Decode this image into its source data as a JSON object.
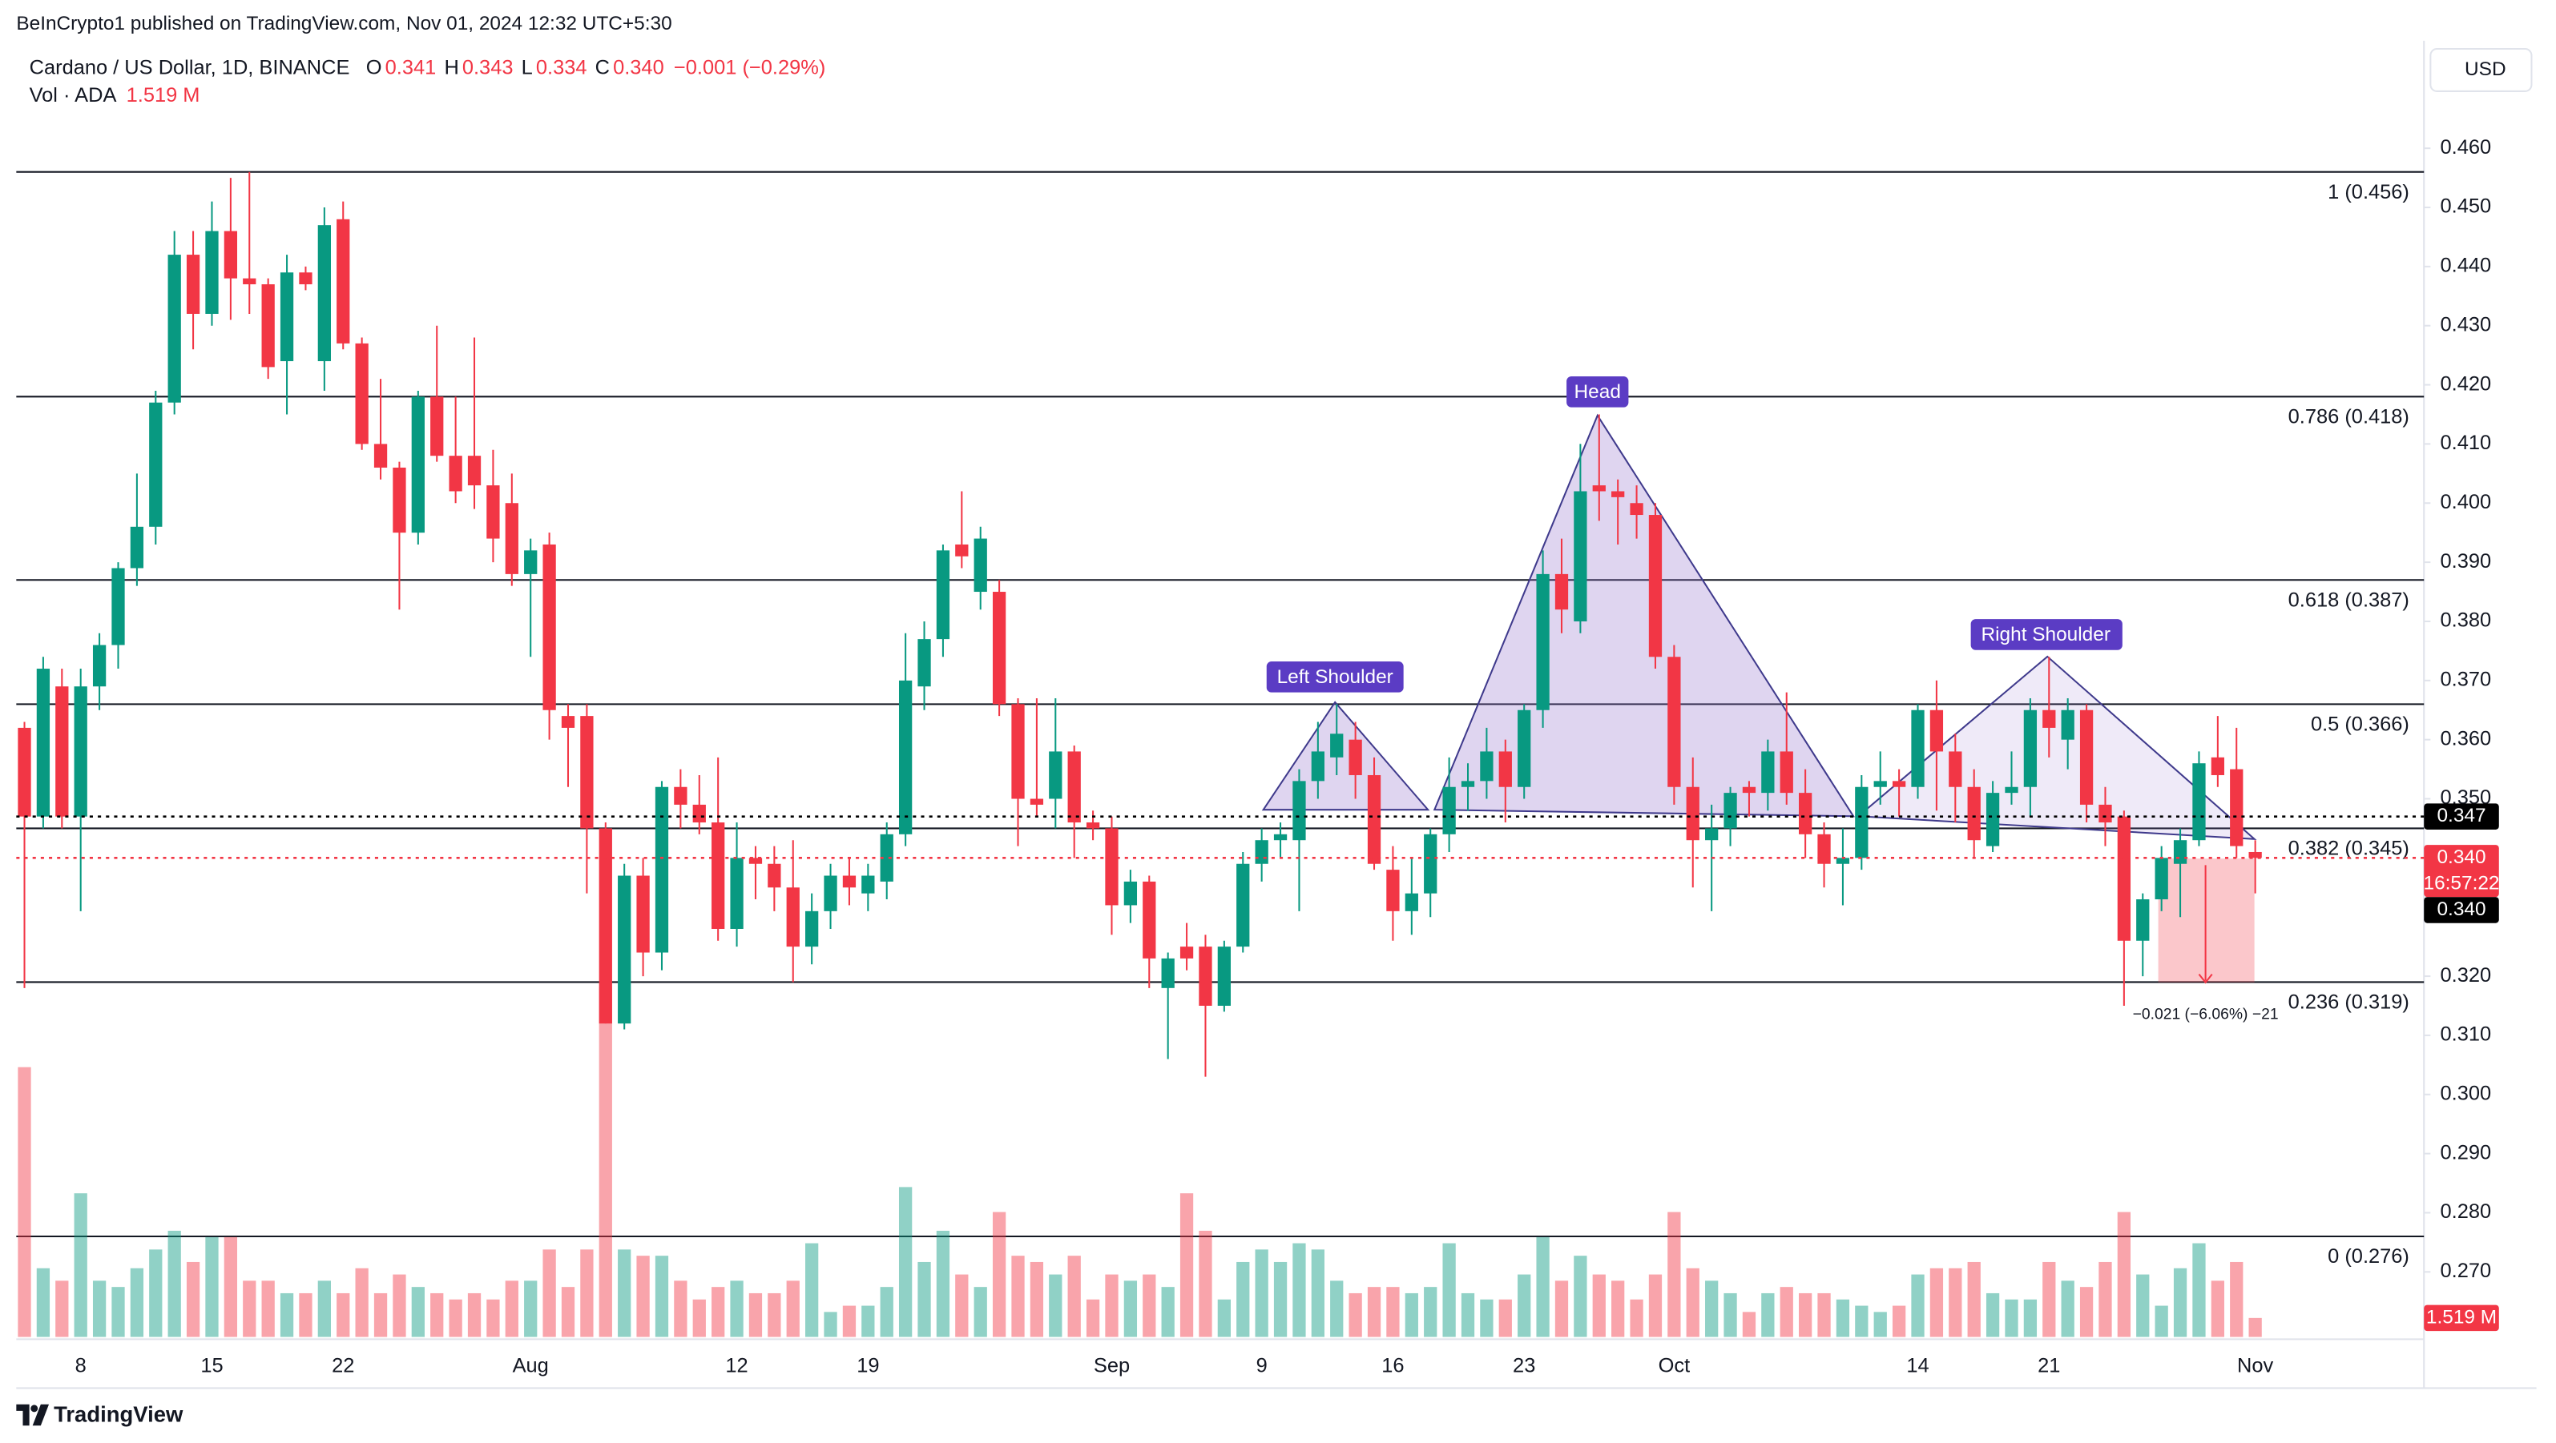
{
  "header": {
    "published": "BeInCrypto1 published on TradingView.com, Nov 01, 2024 12:32 UTC+5:30",
    "symbol": "Cardano / US Dollar, 1D, BINANCE",
    "ohlc": [
      {
        "label": "O",
        "value": "0.341"
      },
      {
        "label": "H",
        "value": "0.343"
      },
      {
        "label": "L",
        "value": "0.334"
      },
      {
        "label": "C",
        "value": "0.340"
      }
    ],
    "change": "−0.001 (−0.29%)",
    "volume_title": "Vol · ADA",
    "volume_value": "1.519 M",
    "currency": "USD"
  },
  "annotations": {
    "left_shoulder": "Left Shoulder",
    "head": "Head",
    "right_shoulder": "Right Shoulder",
    "measure": "−0.021 (−6.06%) −21"
  },
  "footer": {
    "logo": "TradingView"
  },
  "chart_data": {
    "type": "candlestick",
    "up_color": "#089981",
    "down_color": "#f23645",
    "grid": false,
    "categories": [
      null,
      null,
      null,
      "8",
      null,
      null,
      null,
      null,
      null,
      null,
      "15",
      null,
      null,
      null,
      null,
      null,
      null,
      "22",
      null,
      null,
      null,
      null,
      null,
      null,
      null,
      null,
      null,
      "Aug",
      null,
      null,
      null,
      null,
      null,
      null,
      null,
      null,
      null,
      null,
      "12",
      null,
      null,
      null,
      null,
      null,
      null,
      "19",
      null,
      null,
      null,
      null,
      null,
      null,
      null,
      null,
      null,
      null,
      null,
      null,
      "Sep",
      null,
      null,
      null,
      null,
      null,
      null,
      null,
      "9",
      null,
      null,
      null,
      null,
      null,
      null,
      "16",
      null,
      null,
      null,
      null,
      null,
      null,
      "23",
      null,
      null,
      null,
      null,
      null,
      null,
      null,
      "Oct",
      null,
      null,
      null,
      null,
      null,
      null,
      null,
      null,
      null,
      null,
      null,
      null,
      "14",
      null,
      null,
      null,
      null,
      null,
      null,
      "21",
      null,
      null,
      null,
      null,
      null,
      null,
      null,
      null,
      null,
      null,
      "Nov"
    ],
    "open": [
      0.362,
      0.347,
      0.369,
      0.347,
      0.369,
      0.376,
      0.389,
      0.396,
      0.417,
      0.442,
      0.432,
      0.446,
      0.438,
      0.437,
      0.424,
      0.439,
      0.424,
      0.448,
      0.427,
      0.41,
      0.406,
      0.395,
      0.418,
      0.408,
      0.408,
      0.403,
      0.4,
      0.388,
      0.393,
      0.364,
      0.364,
      0.345,
      0.312,
      0.337,
      0.324,
      0.352,
      0.349,
      0.346,
      0.328,
      0.34,
      0.339,
      0.335,
      0.325,
      0.331,
      0.337,
      0.334,
      0.336,
      0.344,
      0.369,
      0.377,
      0.393,
      0.385,
      0.385,
      0.366,
      0.35,
      0.35,
      0.358,
      0.346,
      0.345,
      0.332,
      0.336,
      0.318,
      0.325,
      0.325,
      0.315,
      0.325,
      0.339,
      0.343,
      0.343,
      0.353,
      0.357,
      0.36,
      0.354,
      0.338,
      0.331,
      0.334,
      0.344,
      0.352,
      0.353,
      0.358,
      0.352,
      0.365,
      0.388,
      0.38,
      0.403,
      0.402,
      0.4,
      0.398,
      0.374,
      0.352,
      0.343,
      0.345,
      0.352,
      0.351,
      0.358,
      0.351,
      0.344,
      0.339,
      0.34,
      0.352,
      0.353,
      0.352,
      0.365,
      0.358,
      0.352,
      0.342,
      0.351,
      0.352,
      0.365,
      0.36,
      0.365,
      0.349,
      0.347,
      0.326,
      0.333,
      0.339,
      0.343,
      0.357,
      0.355,
      0.341
    ],
    "high": [
      0.363,
      0.374,
      0.372,
      0.372,
      0.378,
      0.39,
      0.405,
      0.419,
      0.446,
      0.446,
      0.451,
      0.455,
      0.456,
      0.438,
      0.442,
      0.44,
      0.45,
      0.451,
      0.428,
      0.421,
      0.407,
      0.419,
      0.43,
      0.418,
      0.428,
      0.409,
      0.405,
      0.394,
      0.395,
      0.366,
      0.366,
      0.346,
      0.339,
      0.34,
      0.353,
      0.355,
      0.354,
      0.357,
      0.346,
      0.342,
      0.342,
      0.343,
      0.334,
      0.339,
      0.34,
      0.339,
      0.346,
      0.378,
      0.38,
      0.393,
      0.402,
      0.396,
      0.387,
      0.367,
      0.367,
      0.367,
      0.359,
      0.348,
      0.347,
      0.338,
      0.337,
      0.324,
      0.329,
      0.327,
      0.326,
      0.341,
      0.345,
      0.346,
      0.355,
      0.363,
      0.366,
      0.363,
      0.357,
      0.342,
      0.34,
      0.345,
      0.357,
      0.356,
      0.362,
      0.36,
      0.366,
      0.392,
      0.394,
      0.41,
      0.415,
      0.404,
      0.403,
      0.4,
      0.376,
      0.357,
      0.349,
      0.352,
      0.353,
      0.36,
      0.368,
      0.355,
      0.346,
      0.345,
      0.354,
      0.358,
      0.355,
      0.366,
      0.37,
      0.361,
      0.355,
      0.353,
      0.358,
      0.367,
      0.374,
      0.367,
      0.366,
      0.352,
      0.348,
      0.334,
      0.342,
      0.345,
      0.358,
      0.364,
      0.362,
      0.343
    ],
    "low": [
      0.318,
      0.345,
      0.345,
      0.331,
      0.365,
      0.372,
      0.386,
      0.393,
      0.415,
      0.426,
      0.43,
      0.431,
      0.432,
      0.421,
      0.415,
      0.436,
      0.419,
      0.426,
      0.409,
      0.404,
      0.382,
      0.393,
      0.407,
      0.4,
      0.399,
      0.39,
      0.386,
      0.374,
      0.36,
      0.352,
      0.334,
      0.312,
      0.311,
      0.32,
      0.321,
      0.345,
      0.344,
      0.326,
      0.325,
      0.333,
      0.331,
      0.319,
      0.322,
      0.328,
      0.332,
      0.331,
      0.333,
      0.342,
      0.365,
      0.374,
      0.389,
      0.382,
      0.364,
      0.342,
      0.347,
      0.345,
      0.34,
      0.343,
      0.327,
      0.329,
      0.318,
      0.306,
      0.321,
      0.303,
      0.314,
      0.324,
      0.336,
      0.34,
      0.331,
      0.35,
      0.354,
      0.35,
      0.338,
      0.326,
      0.327,
      0.33,
      0.341,
      0.348,
      0.35,
      0.346,
      0.35,
      0.362,
      0.378,
      0.378,
      0.397,
      0.393,
      0.394,
      0.372,
      0.349,
      0.335,
      0.331,
      0.342,
      0.347,
      0.348,
      0.349,
      0.34,
      0.335,
      0.332,
      0.338,
      0.349,
      0.347,
      0.35,
      0.348,
      0.346,
      0.34,
      0.341,
      0.349,
      0.347,
      0.357,
      0.355,
      0.346,
      0.342,
      0.315,
      0.32,
      0.331,
      0.33,
      0.342,
      0.352,
      0.34,
      0.334
    ],
    "close": [
      0.347,
      0.372,
      0.347,
      0.369,
      0.376,
      0.389,
      0.396,
      0.417,
      0.442,
      0.432,
      0.446,
      0.438,
      0.437,
      0.423,
      0.439,
      0.437,
      0.447,
      0.427,
      0.41,
      0.406,
      0.395,
      0.418,
      0.408,
      0.402,
      0.403,
      0.394,
      0.388,
      0.392,
      0.365,
      0.362,
      0.345,
      0.312,
      0.337,
      0.324,
      0.352,
      0.349,
      0.346,
      0.328,
      0.34,
      0.339,
      0.335,
      0.325,
      0.331,
      0.337,
      0.335,
      0.337,
      0.344,
      0.37,
      0.377,
      0.392,
      0.391,
      0.394,
      0.366,
      0.35,
      0.349,
      0.358,
      0.346,
      0.345,
      0.332,
      0.336,
      0.323,
      0.323,
      0.323,
      0.315,
      0.325,
      0.339,
      0.343,
      0.344,
      0.353,
      0.358,
      0.361,
      0.354,
      0.339,
      0.331,
      0.334,
      0.344,
      0.352,
      0.353,
      0.358,
      0.352,
      0.365,
      0.388,
      0.382,
      0.402,
      0.402,
      0.401,
      0.398,
      0.374,
      0.352,
      0.343,
      0.345,
      0.351,
      0.351,
      0.358,
      0.351,
      0.344,
      0.339,
      0.34,
      0.352,
      0.353,
      0.352,
      0.365,
      0.358,
      0.352,
      0.343,
      0.351,
      0.352,
      0.365,
      0.362,
      0.365,
      0.349,
      0.346,
      0.326,
      0.333,
      0.34,
      0.343,
      0.356,
      0.354,
      0.342,
      0.34
    ],
    "volume": [
      21.6,
      5.5,
      4.5,
      11.5,
      4.5,
      4,
      5.5,
      7,
      8.5,
      6,
      8,
      8,
      4.5,
      4.5,
      3.5,
      3.5,
      4.5,
      3.5,
      5.5,
      3.5,
      5,
      4,
      3.5,
      3,
      3.5,
      3,
      4.5,
      4.5,
      7,
      4,
      7,
      28,
      7,
      6.5,
      6.5,
      4.5,
      3,
      4,
      4.5,
      3.5,
      3.5,
      4.5,
      7.5,
      2,
      2.5,
      2.5,
      4,
      12,
      6,
      8.5,
      5,
      4,
      10,
      6.5,
      6,
      5,
      6.5,
      3,
      5,
      4.5,
      5,
      4,
      11.5,
      8.5,
      3,
      6,
      7,
      6,
      7.5,
      7,
      4.5,
      3.5,
      4,
      4,
      3.5,
      4,
      7.5,
      3.5,
      3,
      3,
      5,
      8,
      4.5,
      6.5,
      5,
      4.5,
      3,
      5,
      10,
      5.5,
      4.5,
      3.5,
      2,
      3.5,
      4,
      3.5,
      3.5,
      3,
      2.5,
      2,
      2.5,
      5,
      5.5,
      5.5,
      6,
      3.5,
      3,
      3,
      6,
      4.5,
      4,
      6,
      10,
      5,
      2.5,
      5.5,
      7.5,
      4.5,
      6,
      1.519
    ],
    "volume_label": "1.519 M",
    "volume_ylim": [
      0,
      30
    ],
    "ylim": [
      0.259,
      0.477
    ],
    "yticks": [
      {
        "value": 0.27,
        "label": "0.270"
      },
      {
        "value": 0.28,
        "label": "0.280"
      },
      {
        "value": 0.29,
        "label": "0.290"
      },
      {
        "value": 0.3,
        "label": "0.300"
      },
      {
        "value": 0.31,
        "label": "0.310"
      },
      {
        "value": 0.32,
        "label": "0.320"
      },
      {
        "value": 0.33,
        "label": "0.330"
      },
      {
        "value": 0.34,
        "label": "0.340"
      },
      {
        "value": 0.35,
        "label": "0.350"
      },
      {
        "value": 0.36,
        "label": "0.360"
      },
      {
        "value": 0.37,
        "label": "0.370"
      },
      {
        "value": 0.38,
        "label": "0.380"
      },
      {
        "value": 0.39,
        "label": "0.390"
      },
      {
        "value": 0.4,
        "label": "0.400"
      },
      {
        "value": 0.41,
        "label": "0.410"
      },
      {
        "value": 0.42,
        "label": "0.420"
      },
      {
        "value": 0.43,
        "label": "0.430"
      },
      {
        "value": 0.44,
        "label": "0.440"
      },
      {
        "value": 0.45,
        "label": "0.450"
      },
      {
        "value": 0.46,
        "label": "0.460"
      }
    ],
    "fib_levels": [
      {
        "value": 0.456,
        "label": "1 (0.456)"
      },
      {
        "value": 0.418,
        "label": "0.786 (0.418)"
      },
      {
        "value": 0.387,
        "label": "0.618 (0.387)"
      },
      {
        "value": 0.366,
        "label": "0.5 (0.366)"
      },
      {
        "value": 0.345,
        "label": "0.382 (0.345)"
      },
      {
        "value": 0.319,
        "label": "0.236 (0.319)"
      },
      {
        "value": 0.276,
        "label": "0 (0.276)"
      }
    ],
    "price_tags": [
      {
        "value": 0.347,
        "label": "0.347",
        "color": "#000000"
      },
      {
        "value": 0.34,
        "label": "0.340",
        "color": "#f23645",
        "countdown": "16:57:22"
      },
      {
        "value": 0.34,
        "label": "0.340",
        "color": "#000000"
      }
    ]
  }
}
